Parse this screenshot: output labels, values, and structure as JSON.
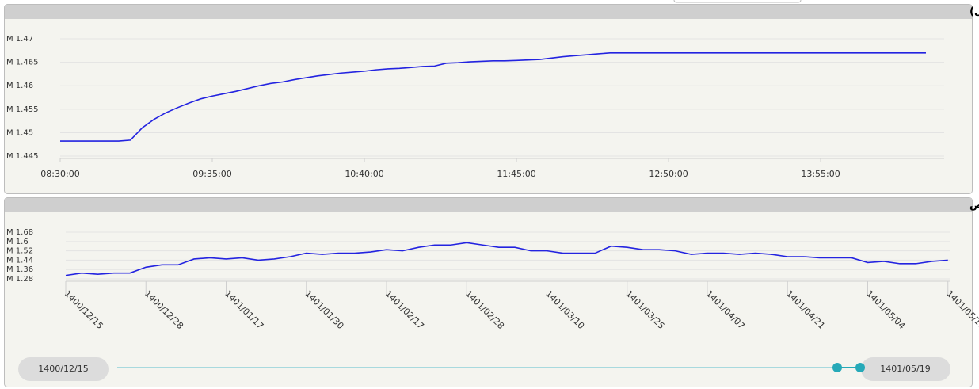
{
  "chart_data": [
    {
      "type": "line",
      "title": "شاخص کل (آخرین روز معاملاتی)",
      "color": "#2323e0",
      "grid": true,
      "categories": [
        "08:30:00",
        null,
        null,
        null,
        null,
        null,
        null,
        null,
        null,
        null,
        null,
        null,
        null,
        "09:35:00",
        null,
        null,
        null,
        null,
        null,
        null,
        null,
        null,
        null,
        null,
        null,
        null,
        "10:40:00",
        null,
        null,
        null,
        null,
        null,
        null,
        null,
        null,
        null,
        null,
        null,
        null,
        "11:45:00",
        null,
        null,
        null,
        null,
        null,
        null,
        null,
        null,
        null,
        null,
        null,
        null,
        "12:50:00",
        null,
        null,
        null,
        null,
        null,
        null,
        null,
        null,
        null,
        null,
        null,
        null,
        "13:55:00",
        null,
        null,
        null,
        null,
        null,
        null,
        null,
        null,
        null
      ],
      "values": [
        1.4482,
        1.4482,
        1.4482,
        1.4482,
        1.4482,
        1.4482,
        1.4484,
        1.451,
        1.4528,
        1.4542,
        1.4553,
        1.4563,
        1.4572,
        1.4578,
        1.4583,
        1.4588,
        1.4594,
        1.46,
        1.4605,
        1.4608,
        1.4613,
        1.4617,
        1.4621,
        1.4624,
        1.4627,
        1.4629,
        1.4631,
        1.4634,
        1.4636,
        1.4637,
        1.4639,
        1.4641,
        1.4642,
        1.4648,
        1.4649,
        1.4651,
        1.4652,
        1.4653,
        1.4653,
        1.4654,
        1.4655,
        1.4656,
        1.4659,
        1.4662,
        1.4664,
        1.4666,
        1.4668,
        1.467,
        1.467,
        1.467,
        1.467,
        1.467,
        1.467,
        1.467,
        1.467,
        1.467,
        1.467,
        1.467,
        1.467,
        1.467,
        1.467,
        1.467,
        1.467,
        1.467,
        1.467,
        1.467,
        1.467,
        1.467,
        1.467,
        1.467,
        1.467,
        1.467,
        1.467,
        1.467,
        1.467
      ],
      "ylim": [
        1.4445,
        1.4733
      ],
      "yticks": [
        {
          "value": 1.445,
          "label": "M 1.445"
        },
        {
          "value": 1.45,
          "label": "M 1.45"
        },
        {
          "value": 1.455,
          "label": "M 1.455"
        },
        {
          "value": 1.46,
          "label": "M 1.46"
        },
        {
          "value": 1.465,
          "label": "M 1.465"
        },
        {
          "value": 1.47,
          "label": "M 1.47"
        }
      ]
    },
    {
      "type": "line",
      "title": "نمودار شاخص",
      "color": "#2323e0",
      "grid": true,
      "categories": [
        "1400/12/15",
        null,
        null,
        null,
        null,
        "1400/12/28",
        null,
        null,
        null,
        null,
        "1401/01/17",
        null,
        null,
        null,
        null,
        "1401/01/30",
        null,
        null,
        null,
        null,
        "1401/02/17",
        null,
        null,
        null,
        null,
        "1401/02/28",
        null,
        null,
        null,
        null,
        "1401/03/10",
        null,
        null,
        null,
        null,
        "1401/03/25",
        null,
        null,
        null,
        null,
        "1401/04/07",
        null,
        null,
        null,
        null,
        "1401/04/21",
        null,
        null,
        null,
        null,
        "1401/05/04",
        null,
        null,
        null,
        null,
        "1401/05/19"
      ],
      "values": [
        1.31,
        1.33,
        1.32,
        1.33,
        1.33,
        1.38,
        1.4,
        1.4,
        1.45,
        1.46,
        1.45,
        1.46,
        1.44,
        1.45,
        1.47,
        1.5,
        1.49,
        1.5,
        1.5,
        1.51,
        1.53,
        1.52,
        1.55,
        1.57,
        1.57,
        1.59,
        1.57,
        1.55,
        1.55,
        1.52,
        1.52,
        1.5,
        1.5,
        1.5,
        1.56,
        1.55,
        1.53,
        1.53,
        1.52,
        1.49,
        1.5,
        1.5,
        1.49,
        1.5,
        1.49,
        1.47,
        1.47,
        1.46,
        1.46,
        1.46,
        1.42,
        1.43,
        1.41,
        1.41,
        1.43,
        1.44
      ],
      "ylim": [
        1.26,
        1.72
      ],
      "yticks": [
        {
          "value": 1.28,
          "label": "M 1.28"
        },
        {
          "value": 1.36,
          "label": "M 1.36"
        },
        {
          "value": 1.44,
          "label": "M 1.44"
        },
        {
          "value": 1.52,
          "label": "M 1.52"
        },
        {
          "value": 1.6,
          "label": "M 1.6"
        },
        {
          "value": 1.68,
          "label": "M 1.68"
        }
      ]
    }
  ],
  "range_slider": {
    "start": "1400/12/15",
    "end": "1401/05/19"
  }
}
